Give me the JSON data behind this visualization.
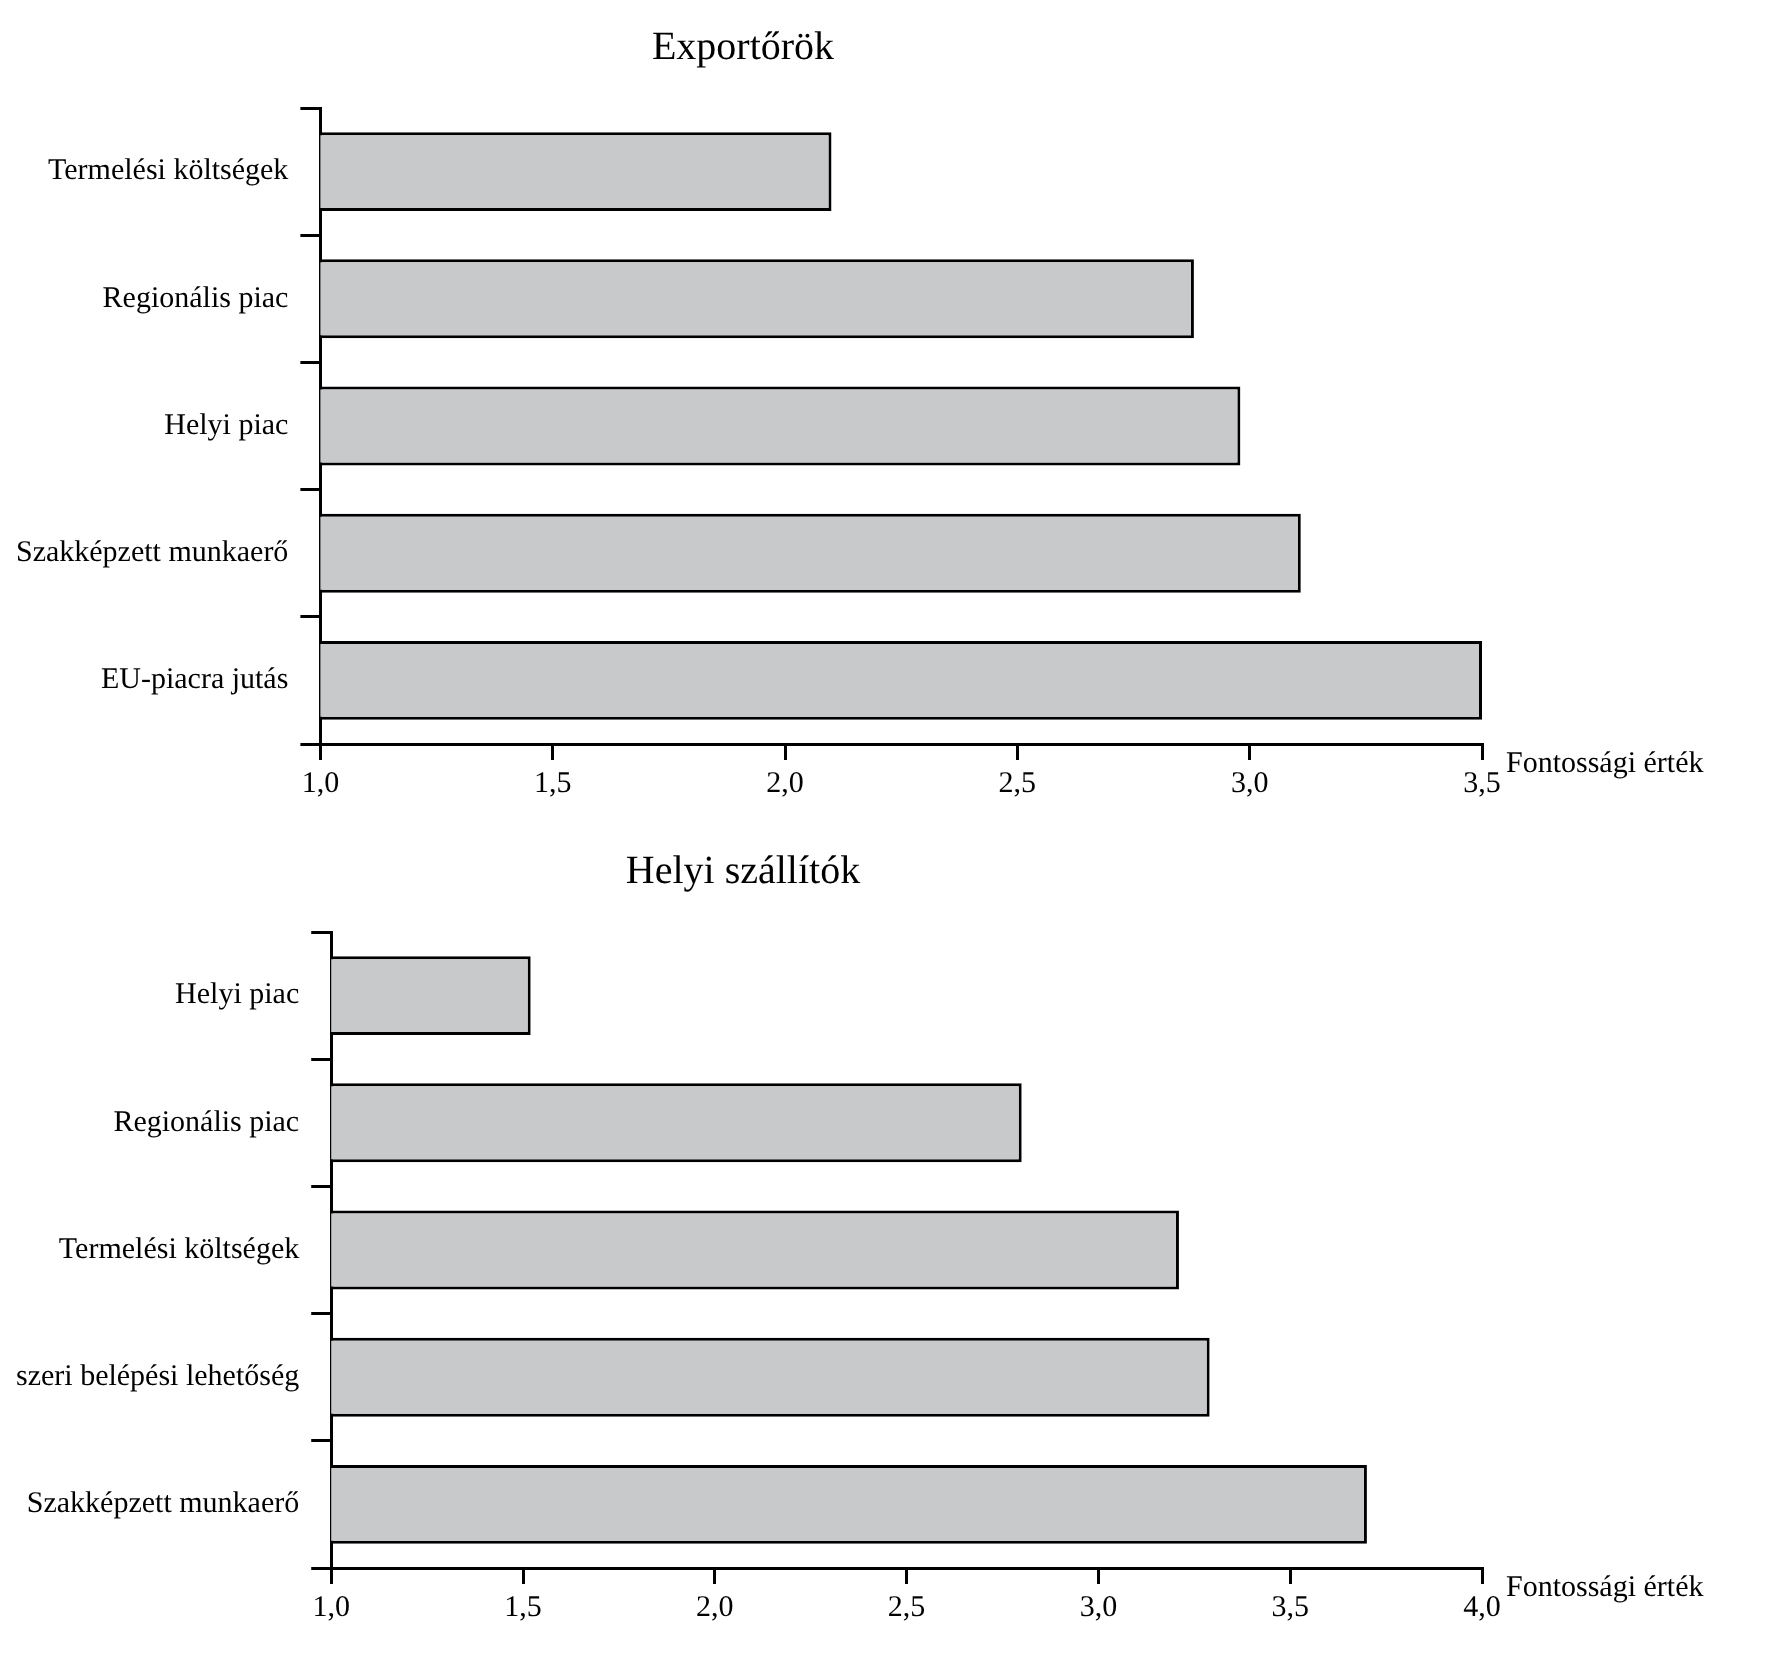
{
  "chart_data": [
    {
      "type": "bar",
      "orientation": "horizontal",
      "title": "Exportőrök",
      "xlabel": "Fontossági érték",
      "categories": [
        "Termelési költségek",
        "Regionális piac",
        "Helyi piac",
        "Szakképzett munkaerő",
        "EU-piacra jutás"
      ],
      "values": [
        2.1,
        2.88,
        2.98,
        3.11,
        3.5
      ],
      "color": "#c8c9cb",
      "xlim": [
        1,
        3.5
      ],
      "xticks": [
        {
          "value": 1,
          "label": "1,0"
        },
        {
          "value": 1.5,
          "label": "1,5"
        },
        {
          "value": 2,
          "label": "2,0"
        },
        {
          "value": 2.5,
          "label": "2,5"
        },
        {
          "value": 3,
          "label": "3,0"
        },
        {
          "value": 3.5,
          "label": "3,5"
        }
      ],
      "grid": false,
      "legend": false
    },
    {
      "type": "bar",
      "orientation": "horizontal",
      "title": "Helyi szállítók",
      "xlabel": "Fontossági érték",
      "categories": [
        "Helyi piac",
        "Regionális piac",
        "Termelési költségek",
        "szeri belépési lehetőség",
        "Szakképzett munkaerő"
      ],
      "values": [
        1.52,
        2.8,
        3.21,
        3.29,
        3.7
      ],
      "color": "#c8c9cb",
      "xlim": [
        1,
        4
      ],
      "xticks": [
        {
          "value": 1,
          "label": "1,0"
        },
        {
          "value": 1.5,
          "label": "1,5"
        },
        {
          "value": 2,
          "label": "2,0"
        },
        {
          "value": 2.5,
          "label": "2,5"
        },
        {
          "value": 3,
          "label": "3,0"
        },
        {
          "value": 3.5,
          "label": "3,5"
        },
        {
          "value": 4,
          "label": "4,0"
        }
      ],
      "grid": false,
      "legend": false
    }
  ]
}
